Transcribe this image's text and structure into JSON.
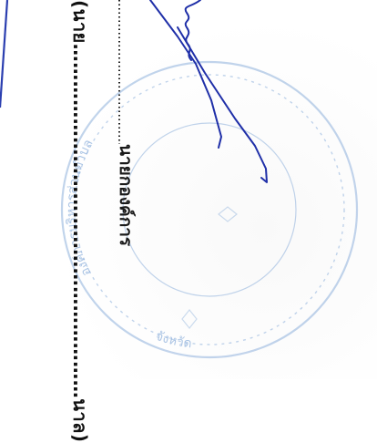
{
  "document": {
    "name_paren": "(นาย…………………………………………………นาล)",
    "position_label": "นายกองค์การ",
    "stamp": {
      "top_text": "องค์การบริหารส่วนตำบล",
      "bottom_text": "จังหวัด",
      "ink_color": "#8fb1dc"
    },
    "signature_ink_color": "#1f2fa8",
    "border_color": "#2b3fb0"
  }
}
